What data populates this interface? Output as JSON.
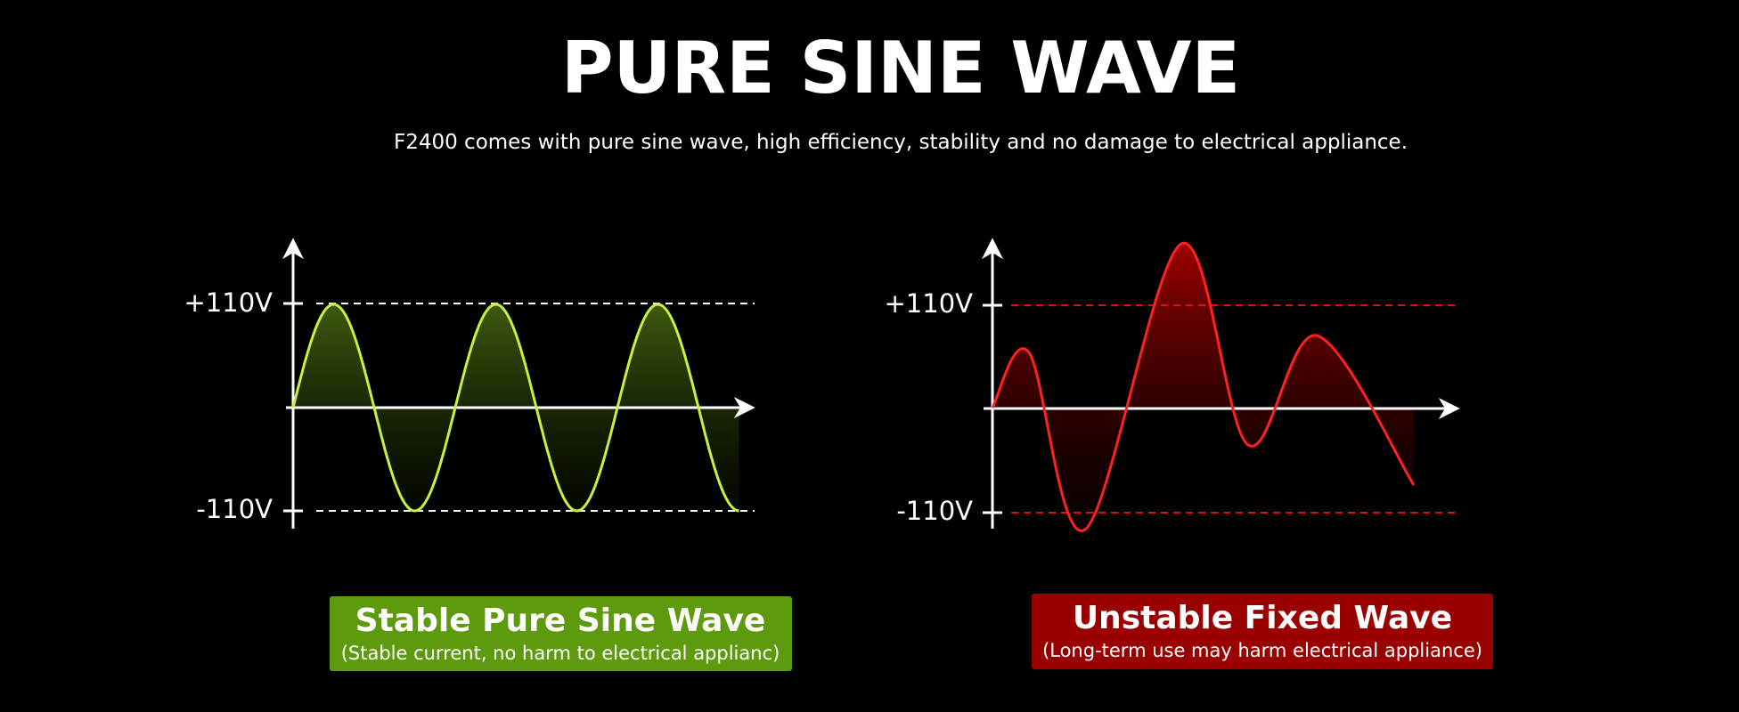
{
  "header": {
    "title": "PURE SINE WAVE",
    "subtitle": "F2400 comes with pure sine wave, high efficiency, stability and no damage to electrical appliance."
  },
  "panels": [
    {
      "upper_label": "+110V",
      "lower_label": "-110V",
      "caption_title": "Stable Pure Sine Wave",
      "caption_text": "(Stable current, no harm to electrical applianc)"
    },
    {
      "upper_label": "+110V",
      "lower_label": "-110V",
      "caption_title": "Unstable Fixed Wave",
      "caption_text": "(Long-term use may harm electrical appliance)"
    }
  ]
}
